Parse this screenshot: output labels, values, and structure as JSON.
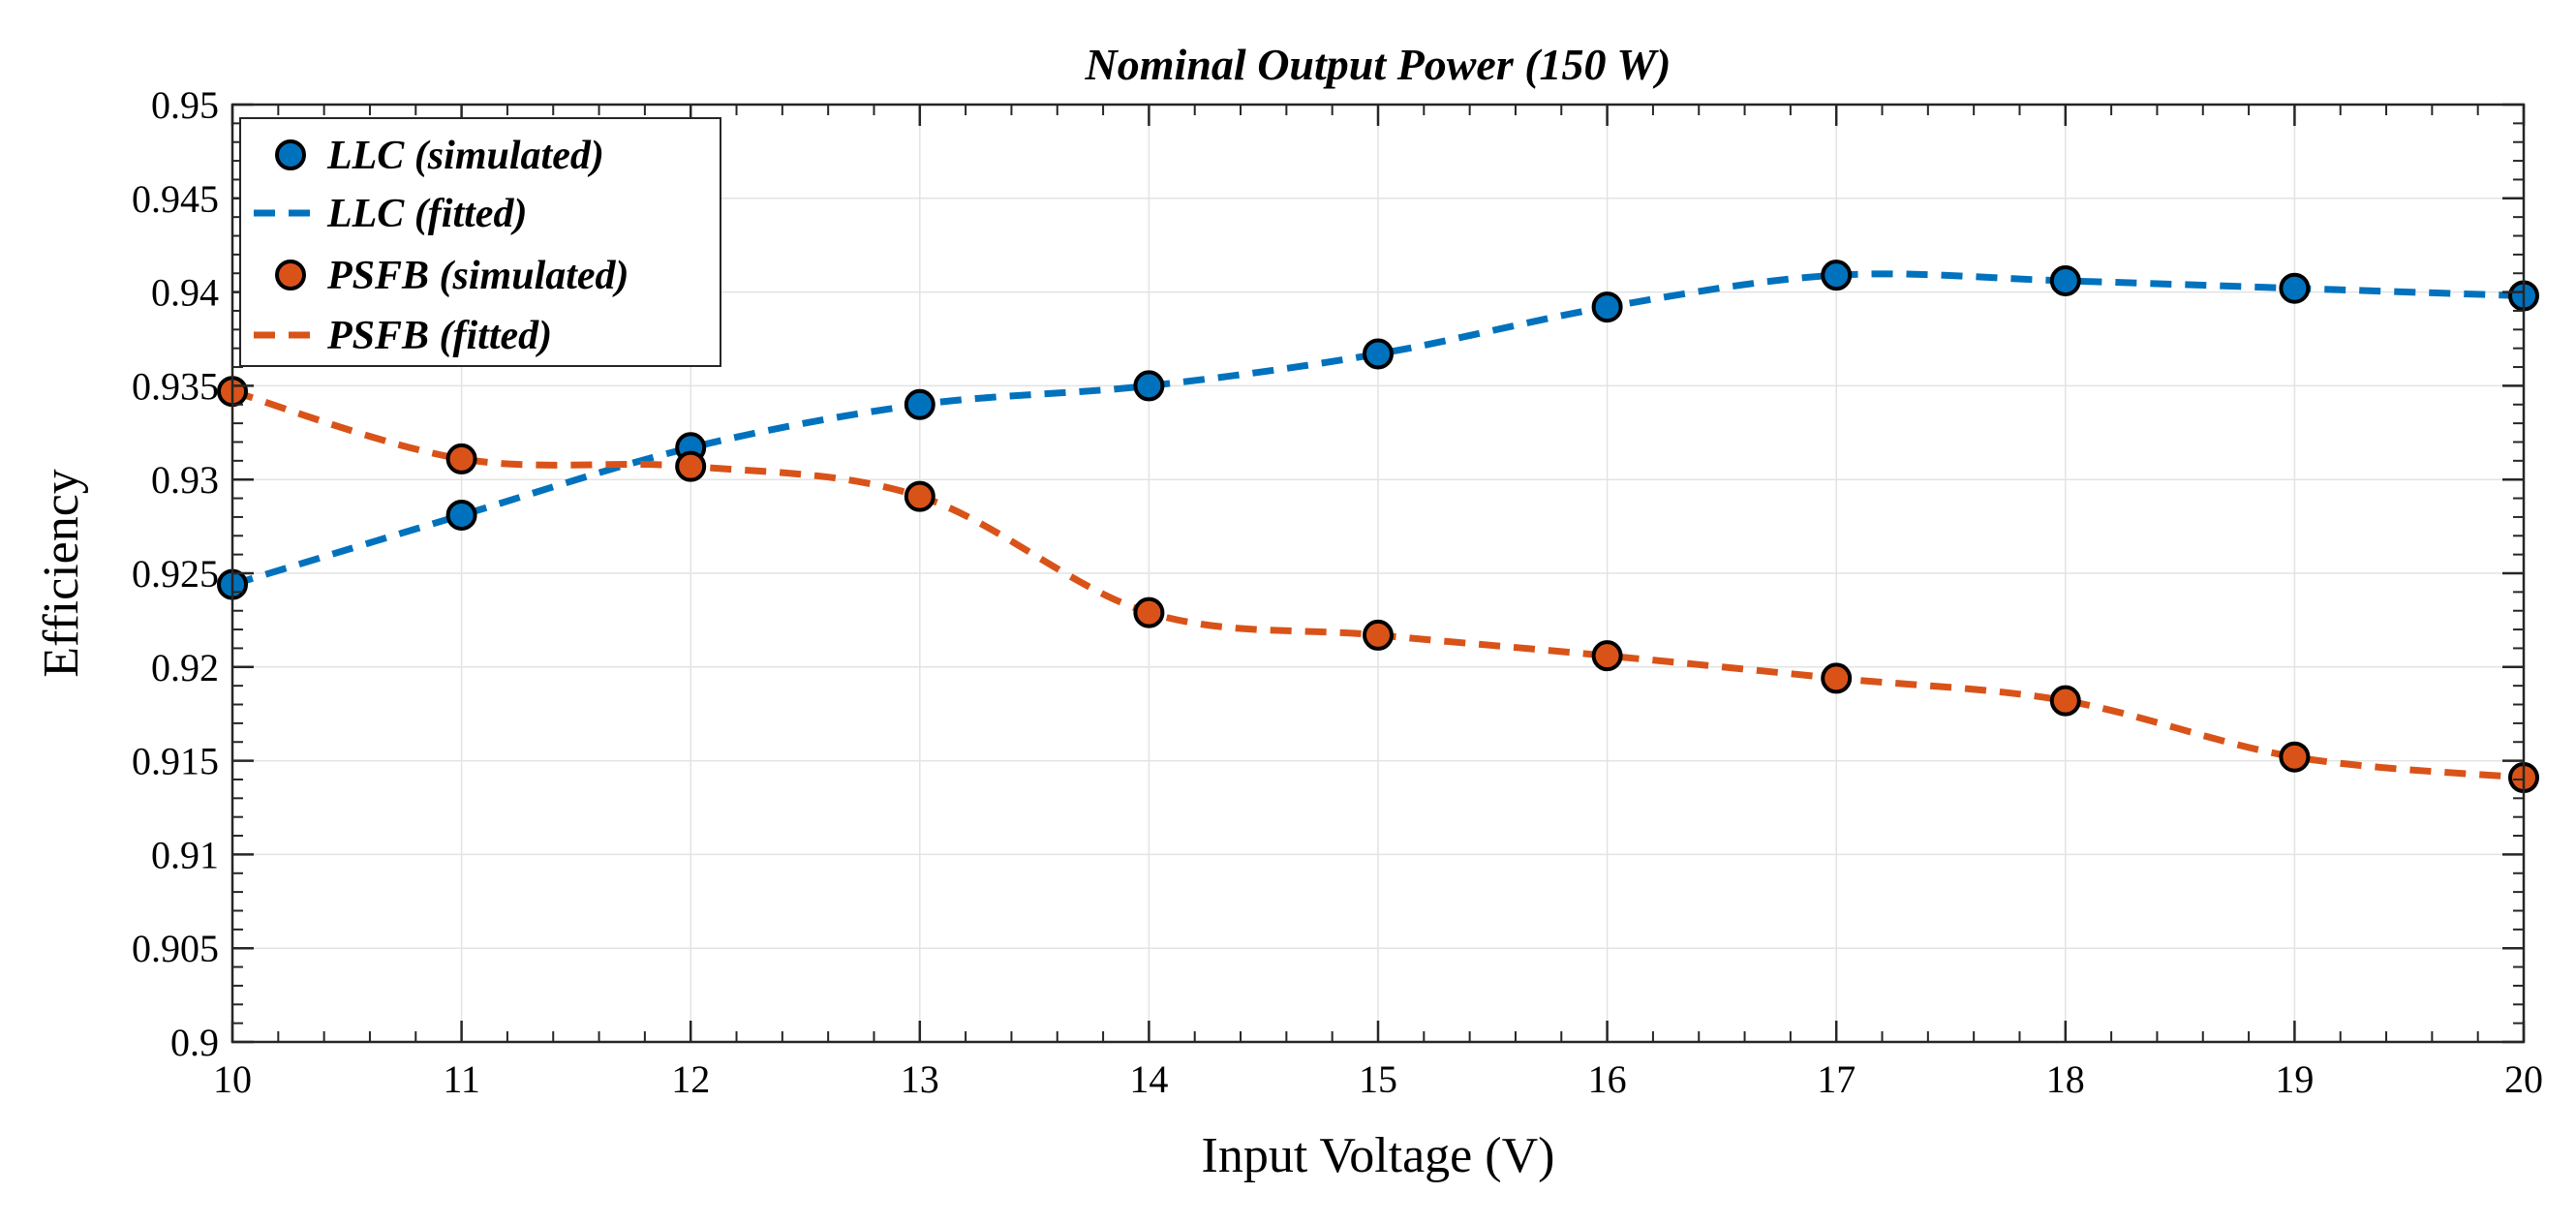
{
  "chart_data": {
    "type": "line",
    "title": "Nominal Output Power (150 W)",
    "xlabel": "Input Voltage (V)",
    "ylabel": "Efficiency",
    "xlim": [
      10,
      20
    ],
    "ylim": [
      0.9,
      0.95
    ],
    "grid": true,
    "legend_position": "top-left",
    "x_ticks": [
      "10",
      "11",
      "12",
      "13",
      "14",
      "15",
      "16",
      "17",
      "18",
      "19",
      "20"
    ],
    "y_ticks": [
      "0.9",
      "0.905",
      "0.91",
      "0.915",
      "0.92",
      "0.925",
      "0.93",
      "0.935",
      "0.94",
      "0.945",
      "0.95"
    ],
    "x": [
      10,
      11,
      12,
      13,
      14,
      15,
      16,
      17,
      18,
      19,
      20
    ],
    "series": [
      {
        "name": "LLC (simulated)",
        "style": "markers",
        "color": "#0072BD",
        "values": [
          0.9244,
          0.9281,
          0.9317,
          0.934,
          0.935,
          0.9367,
          0.9392,
          0.9409,
          0.9406,
          0.9402,
          0.9398
        ]
      },
      {
        "name": "LLC (fitted)",
        "style": "dashed",
        "color": "#0072BD",
        "values": [
          0.9244,
          0.9281,
          0.9317,
          0.934,
          0.935,
          0.9367,
          0.9392,
          0.9409,
          0.9406,
          0.9402,
          0.9398
        ]
      },
      {
        "name": "PSFB (simulated)",
        "style": "markers",
        "color": "#D95319",
        "values": [
          0.9347,
          0.9311,
          0.9307,
          0.9291,
          0.9229,
          0.9217,
          0.9206,
          0.9194,
          0.9182,
          0.9152,
          0.9141
        ]
      },
      {
        "name": "PSFB (fitted)",
        "style": "dashed",
        "color": "#D95319",
        "values": [
          0.9347,
          0.9311,
          0.9307,
          0.9291,
          0.9229,
          0.9217,
          0.9206,
          0.9194,
          0.9182,
          0.9152,
          0.9141
        ]
      }
    ]
  }
}
